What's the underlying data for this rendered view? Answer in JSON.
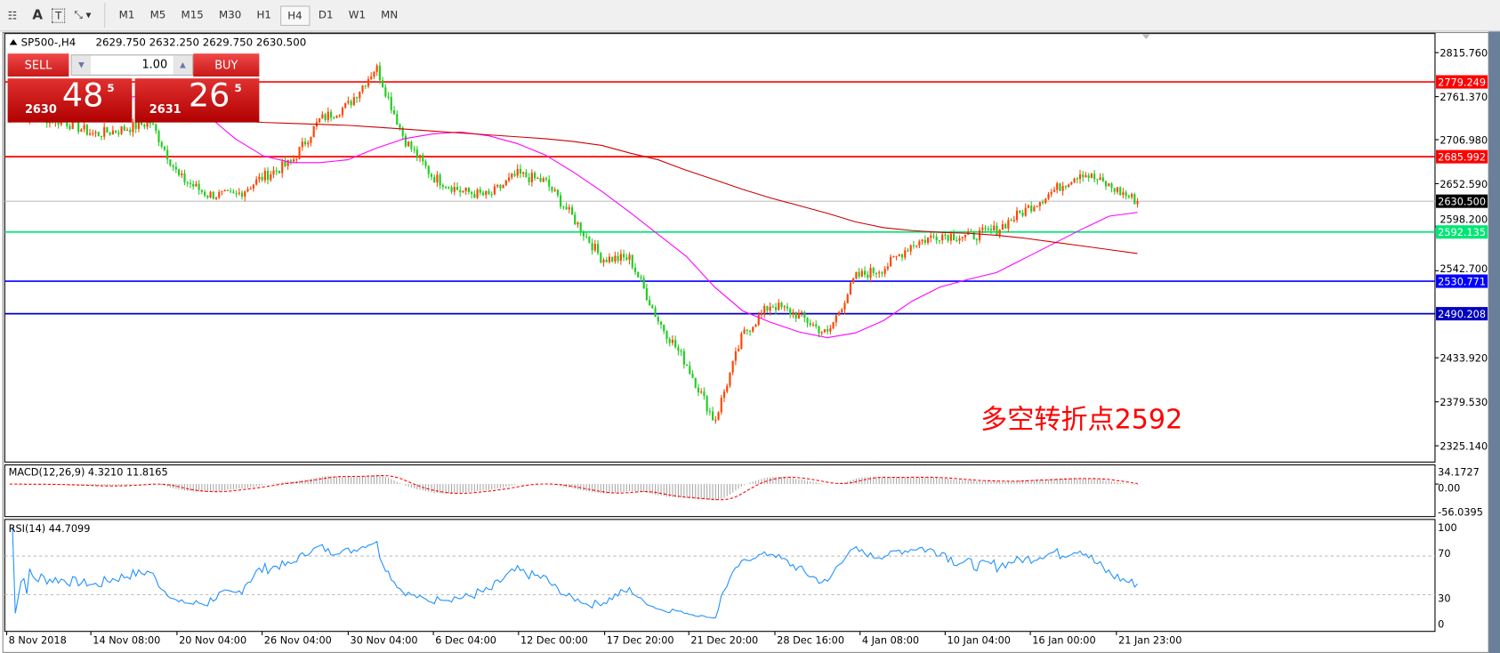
{
  "toolbar": {
    "items": [
      "M1",
      "M5",
      "M15",
      "M30",
      "H1",
      "H4",
      "D1",
      "W1",
      "MN"
    ],
    "active": "H4"
  },
  "header": {
    "symbol": "SP500-,H4",
    "ohlc": "2629.750 2632.250 2629.750 2630.500"
  },
  "trade": {
    "sell_label": "SELL",
    "buy_label": "BUY",
    "lot": "1.00",
    "sell_prefix": "2630",
    "sell_big": "48",
    "sell_sup": "5",
    "buy_prefix": "2631",
    "buy_big": "26",
    "buy_sup": "5"
  },
  "annotation": "多空转折点2592",
  "colors": {
    "bull": "#ff4500",
    "bear": "#22cc22",
    "fast_ma": "#ff00ff",
    "slow_ma": "#cc0000",
    "rsi": "#1e90ff",
    "macd_signal": "#ff0000"
  },
  "chart_data": {
    "type": "candlestick",
    "price_axis": {
      "ticks": [
        "2815.760",
        "2761.370",
        "2706.980",
        "2652.590",
        "2598.200",
        "2542.700",
        "2433.920",
        "2379.530",
        "2325.140"
      ],
      "range": [
        2310,
        2830
      ]
    },
    "levels": [
      {
        "value": "2779.249",
        "color": "#ff0000"
      },
      {
        "value": "2685.992",
        "color": "#ff0000"
      },
      {
        "value": "2630.500",
        "color": "#000000",
        "line": "#c0c0c0"
      },
      {
        "value": "2592.135",
        "color": "#00e676"
      },
      {
        "value": "2530.771",
        "color": "#0000ff"
      },
      {
        "value": "2490.208",
        "color": "#0000c0"
      }
    ],
    "x_labels": [
      "8 Nov 2018",
      "14 Nov 08:00",
      "20 Nov 04:00",
      "26 Nov 04:00",
      "30 Nov 04:00",
      "6 Dec 04:00",
      "12 Dec 00:00",
      "17 Dec 20:00",
      "21 Dec 20:00",
      "28 Dec 16:00",
      "4 Jan 08:00",
      "10 Jan 04:00",
      "16 Jan 00:00",
      "21 Jan 23:00"
    ],
    "approx_closes": [
      2738,
      2736,
      2729,
      2714,
      2720,
      2729,
      2661,
      2639,
      2637,
      2661,
      2679,
      2732,
      2750,
      2798,
      2708,
      2661,
      2643,
      2637,
      2664,
      2655,
      2609,
      2559,
      2559,
      2482,
      2428,
      2356,
      2464,
      2502,
      2488,
      2464,
      2536,
      2547,
      2577,
      2589,
      2586,
      2595,
      2619,
      2643,
      2667,
      2649,
      2630.5
    ],
    "fast_ma": [
      2728.7,
      2740.6,
      2750.2,
      2756.1,
      2759.7,
      2762.1,
      2758.5,
      2738.2,
      2708.4,
      2686.9,
      2678.6,
      2678.6,
      2682.2,
      2696.5,
      2708.4,
      2714.4,
      2716.8,
      2712,
      2702.4,
      2688.1,
      2666.7,
      2642.8,
      2616.6,
      2589.1,
      2561.7,
      2523.5,
      2493.7,
      2479.4,
      2467.5,
      2460.3,
      2466.3,
      2481.8,
      2505.7,
      2523.5,
      2533.1,
      2541.5,
      2559.3,
      2577.2,
      2595.1,
      2611.8,
      2616.6
    ],
    "slow_ma": [
      null,
      null,
      null,
      null,
      null,
      null,
      null,
      2733.5,
      2731.1,
      2728.7,
      2727.5,
      2726.3,
      2725.1,
      2722.8,
      2720.4,
      2718,
      2715.6,
      2713.2,
      2710.8,
      2708.4,
      2704.9,
      2700.1,
      2690.5,
      2682.2,
      2669.1,
      2657.2,
      2645.2,
      2634.5,
      2625,
      2615.4,
      2604.7,
      2597.5,
      2593.9,
      2591.6,
      2590.4,
      2588,
      2584.4,
      2579.6,
      2574.9,
      2570.1,
      2565.3
    ],
    "macd": {
      "label": "MACD(12,26,9) 4.3210 11.8165",
      "ticks": [
        "34.1727",
        "0.00",
        "-56.0395"
      ],
      "range": [
        -56.0395,
        34.1727
      ]
    },
    "rsi": {
      "label": "RSI(14) 44.7099",
      "ticks": [
        "100",
        "70",
        "30",
        "0"
      ],
      "levels": [
        70,
        30
      ]
    }
  }
}
